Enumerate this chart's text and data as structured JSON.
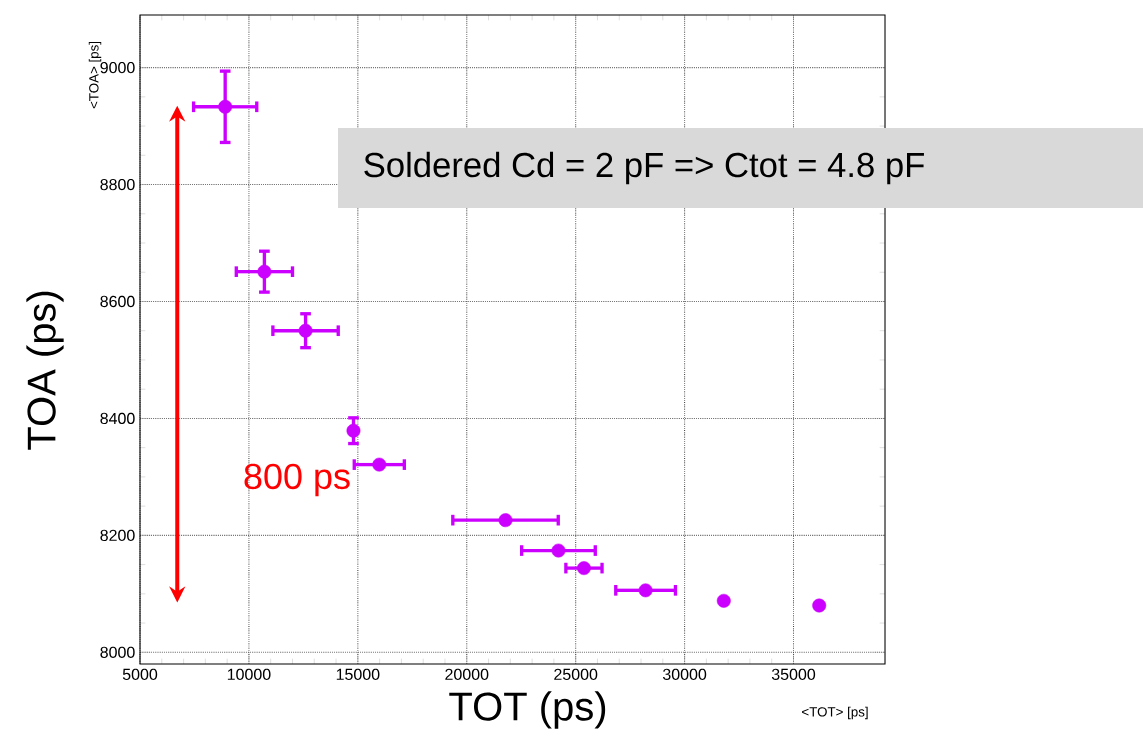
{
  "chart_data": {
    "type": "scatter",
    "xlabel": "TOT (ps)",
    "ylabel": "TOA (ps)",
    "x": [
      8910,
      10710,
      12600,
      14800,
      15985,
      21780,
      24210,
      25380,
      28210,
      31800,
      36180
    ],
    "values": [
      8933,
      8651,
      8550,
      8379,
      8321,
      8226,
      8174,
      8144,
      8106,
      8088,
      8080
    ],
    "errors": [
      61,
      35,
      29,
      22,
      null,
      null,
      null,
      null,
      null,
      null,
      null
    ],
    "xerrors": [
      1450,
      1290,
      1500,
      null,
      1150,
      2420,
      1690,
      830,
      1370,
      null,
      null
    ],
    "color": "#cc00ff",
    "marker": "circle",
    "grid": true,
    "xlim": [
      5000,
      39200
    ],
    "ylim": [
      7980,
      9090
    ],
    "xticks": [
      5000,
      10000,
      15000,
      20000,
      25000,
      30000,
      35000
    ],
    "yticks": [
      8000,
      8200,
      8400,
      8600,
      8800,
      9000
    ],
    "annotations": [
      "Soldered Cd = 2 pF => Ctot = 4.8 pF",
      "800 ps",
      "<TOT> [ps]",
      "<TOA> [ps]"
    ]
  }
}
